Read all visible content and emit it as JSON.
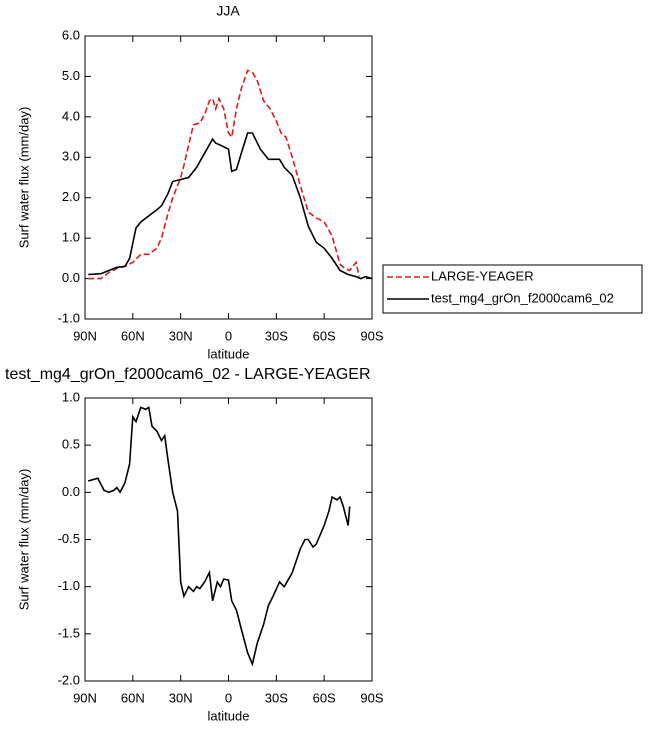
{
  "chart_data": [
    {
      "type": "line",
      "title": "JJA",
      "xlabel": "latitude",
      "ylabel": "Surf water flux (mm/day)",
      "xlim": [
        90,
        -90
      ],
      "ylim": [
        -1,
        6
      ],
      "xticks": [
        {
          "value": 90,
          "label": "90N"
        },
        {
          "value": 60,
          "label": "60N"
        },
        {
          "value": 30,
          "label": "30N"
        },
        0,
        {
          "value": -30,
          "label": "30S"
        },
        {
          "value": -60,
          "label": "60S"
        },
        {
          "value": -90,
          "label": "90S"
        }
      ],
      "yticks": [
        {
          "value": -1,
          "label": "-1.0"
        },
        {
          "value": 0,
          "label": "0.0"
        },
        {
          "value": 1,
          "label": "1.0"
        },
        {
          "value": 2,
          "label": "2.0"
        },
        {
          "value": 3,
          "label": "3.0"
        },
        {
          "value": 4,
          "label": "4.0"
        },
        {
          "value": 5,
          "label": "5.0"
        },
        {
          "value": 6,
          "label": "6.0"
        }
      ],
      "legend": "right",
      "series": [
        {
          "name": "LARGE-YEAGER",
          "color": "#dd1c1c",
          "dash": "dashed",
          "x": [
            88,
            80,
            75,
            70,
            65,
            60,
            55,
            50,
            45,
            42,
            38,
            35,
            30,
            28,
            25,
            22,
            18,
            15,
            12,
            10,
            8,
            6,
            3,
            0,
            -2,
            -5,
            -8,
            -12,
            -15,
            -18,
            -22,
            -26,
            -30,
            -33,
            -36,
            -40,
            -45,
            -50,
            -55,
            -60,
            -65,
            -70,
            -73,
            -76,
            -80,
            -82
          ],
          "values": [
            0.0,
            0.0,
            0.15,
            0.25,
            0.3,
            0.4,
            0.6,
            0.6,
            0.75,
            1.0,
            1.6,
            2.0,
            2.5,
            2.8,
            3.3,
            3.8,
            3.85,
            4.05,
            4.4,
            4.45,
            4.2,
            4.45,
            4.2,
            3.6,
            3.5,
            4.2,
            4.7,
            5.15,
            5.1,
            4.9,
            4.4,
            4.2,
            3.9,
            3.6,
            3.5,
            3.0,
            2.3,
            1.65,
            1.5,
            1.4,
            1.05,
            0.35,
            0.25,
            0.2,
            0.4,
            0.05
          ]
        },
        {
          "name": "test_mg4_grOn_f2000cam6_02",
          "color": "#000000",
          "dash": "solid",
          "x": [
            88,
            80,
            75,
            70,
            65,
            62,
            58,
            55,
            50,
            45,
            42,
            38,
            35,
            30,
            25,
            20,
            15,
            10,
            8,
            5,
            0,
            -2,
            -5,
            -8,
            -12,
            -15,
            -20,
            -25,
            -28,
            -32,
            -35,
            -40,
            -45,
            -50,
            -55,
            -60,
            -65,
            -70,
            -75,
            -80,
            -83,
            -86,
            -90
          ],
          "values": [
            0.1,
            0.12,
            0.2,
            0.28,
            0.3,
            0.5,
            1.25,
            1.4,
            1.55,
            1.7,
            1.8,
            2.1,
            2.4,
            2.45,
            2.5,
            2.75,
            3.1,
            3.45,
            3.35,
            3.3,
            3.2,
            2.65,
            2.7,
            3.1,
            3.6,
            3.6,
            3.2,
            2.95,
            2.95,
            2.95,
            2.75,
            2.55,
            2.0,
            1.3,
            0.9,
            0.75,
            0.5,
            0.2,
            0.1,
            0.05,
            0.0,
            0.05,
            0.0
          ]
        }
      ]
    },
    {
      "type": "line",
      "title": "test_mg4_grOn_f2000cam6_02 - LARGE-YEAGER",
      "xlabel": "latitude",
      "ylabel": "Surf water flux (mm/day)",
      "xlim": [
        90,
        -90
      ],
      "ylim": [
        -2,
        1
      ],
      "xticks": [
        {
          "value": 90,
          "label": "90N"
        },
        {
          "value": 60,
          "label": "60N"
        },
        {
          "value": 30,
          "label": "30N"
        },
        0,
        {
          "value": -30,
          "label": "30S"
        },
        {
          "value": -60,
          "label": "60S"
        },
        {
          "value": -90,
          "label": "90S"
        }
      ],
      "yticks": [
        {
          "value": -2,
          "label": "-2.0"
        },
        {
          "value": -1.5,
          "label": "-1.5"
        },
        {
          "value": -1,
          "label": "-1.0"
        },
        {
          "value": -0.5,
          "label": "-0.5"
        },
        {
          "value": 0,
          "label": "0.0"
        },
        {
          "value": 0.5,
          "label": "0.5"
        },
        {
          "value": 1,
          "label": "1.0"
        }
      ],
      "color": "#000000",
      "x": [
        88,
        82,
        78,
        75,
        72,
        70,
        68,
        65,
        62,
        60,
        58,
        55,
        52,
        50,
        48,
        45,
        42,
        40,
        38,
        35,
        32,
        30,
        28,
        25,
        22,
        20,
        18,
        15,
        12,
        10,
        7,
        5,
        3,
        0,
        -2,
        -5,
        -8,
        -12,
        -15,
        -18,
        -22,
        -25,
        -28,
        -32,
        -35,
        -40,
        -45,
        -48,
        -50,
        -53,
        -55,
        -60,
        -63,
        -65,
        -68,
        -70,
        -72,
        -75,
        -76
      ],
      "values": [
        0.12,
        0.15,
        0.02,
        0.0,
        0.02,
        0.05,
        0.0,
        0.1,
        0.3,
        0.8,
        0.75,
        0.9,
        0.88,
        0.9,
        0.7,
        0.65,
        0.55,
        0.6,
        0.35,
        0.0,
        -0.2,
        -0.95,
        -1.1,
        -1.0,
        -1.05,
        -1.0,
        -1.02,
        -0.95,
        -0.85,
        -1.15,
        -0.95,
        -1.0,
        -0.92,
        -0.93,
        -1.15,
        -1.25,
        -1.45,
        -1.7,
        -1.82,
        -1.6,
        -1.4,
        -1.2,
        -1.1,
        -0.95,
        -1.0,
        -0.85,
        -0.6,
        -0.5,
        -0.5,
        -0.58,
        -0.55,
        -0.35,
        -0.2,
        -0.05,
        -0.08,
        -0.05,
        -0.15,
        -0.35,
        -0.15
      ]
    }
  ]
}
